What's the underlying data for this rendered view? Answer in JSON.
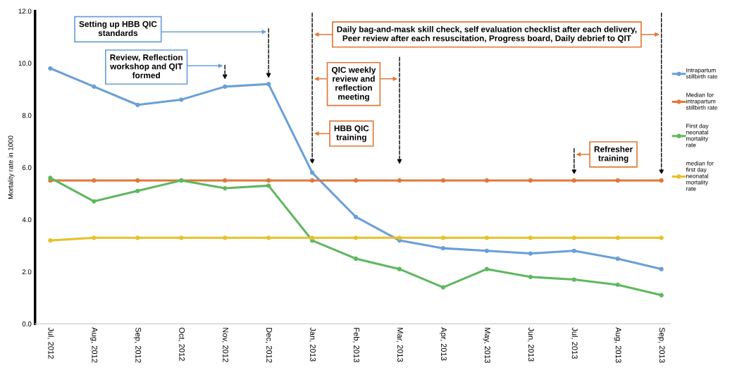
{
  "chart_data": {
    "type": "line",
    "ylabel": "Mortality rate in 1000",
    "categories": [
      "Jul, 2012",
      "Aug, 2012",
      "Sep, 2012",
      "Oct, 2012",
      "Nov, 2012",
      "Dec, 2012",
      "Jan, 2013",
      "Feb, 2013",
      "Mar, 2013",
      "Apr, 2013",
      "May, 2013",
      "Jun, 2013",
      "Jul, 2013",
      "Aug, 2013",
      "Sep, 2013"
    ],
    "series": [
      {
        "name": "Intrapartum\nstillbirth rate",
        "color": "#6a9fd8",
        "values": [
          9.8,
          9.1,
          8.4,
          8.6,
          9.1,
          9.2,
          5.8,
          4.1,
          3.2,
          2.9,
          2.8,
          2.7,
          2.8,
          2.5,
          2.1
        ]
      },
      {
        "name": "Median for\nintrapartum\nstillbirth rate",
        "color": "#e0783a",
        "values": [
          5.5,
          5.5,
          5.5,
          5.5,
          5.5,
          5.5,
          5.5,
          5.5,
          5.5,
          5.5,
          5.5,
          5.5,
          5.5,
          5.5,
          5.5
        ]
      },
      {
        "name": "First day\nneonatal\nmortality\nrate",
        "color": "#5fb760",
        "values": [
          5.6,
          4.7,
          5.1,
          5.5,
          5.2,
          5.3,
          3.2,
          2.5,
          2.1,
          1.4,
          2.1,
          1.8,
          1.7,
          1.5,
          1.1
        ]
      },
      {
        "name": "median for\nfirst day\nneonatal\nmortality\nrate",
        "color": "#e8c02a",
        "values": [
          3.2,
          3.3,
          3.3,
          3.3,
          3.3,
          3.3,
          3.3,
          3.3,
          3.3,
          3.3,
          3.3,
          3.3,
          3.3,
          3.3,
          3.3
        ]
      }
    ],
    "ylim": [
      0,
      12
    ],
    "yticks": [
      {
        "value": 0,
        "label": "0.0"
      },
      {
        "value": 2,
        "label": "2.0"
      },
      {
        "value": 4,
        "label": "4.0"
      },
      {
        "value": 6,
        "label": "6.0"
      },
      {
        "value": 8,
        "label": "8.0"
      },
      {
        "value": 10,
        "label": "10.0"
      },
      {
        "value": 12,
        "label": "12.0"
      }
    ],
    "annotations": [
      "Setting up HBB QIC\nstandards",
      "Review, Reflection\nworkshop and QIT\nformed",
      "Daily bag-and-mask skill check, self evaluation checklist after each delivery,\nPeer review after each resuscitation, Progress board, Daily debrief to QIT",
      "QIC weekly\nreview and\nreflection\nmeeting",
      "HBB QIC\ntraining",
      "Refresher\ntraining"
    ],
    "grid": false,
    "legend": "right",
    "marker": "circle",
    "line_style": "solid"
  }
}
